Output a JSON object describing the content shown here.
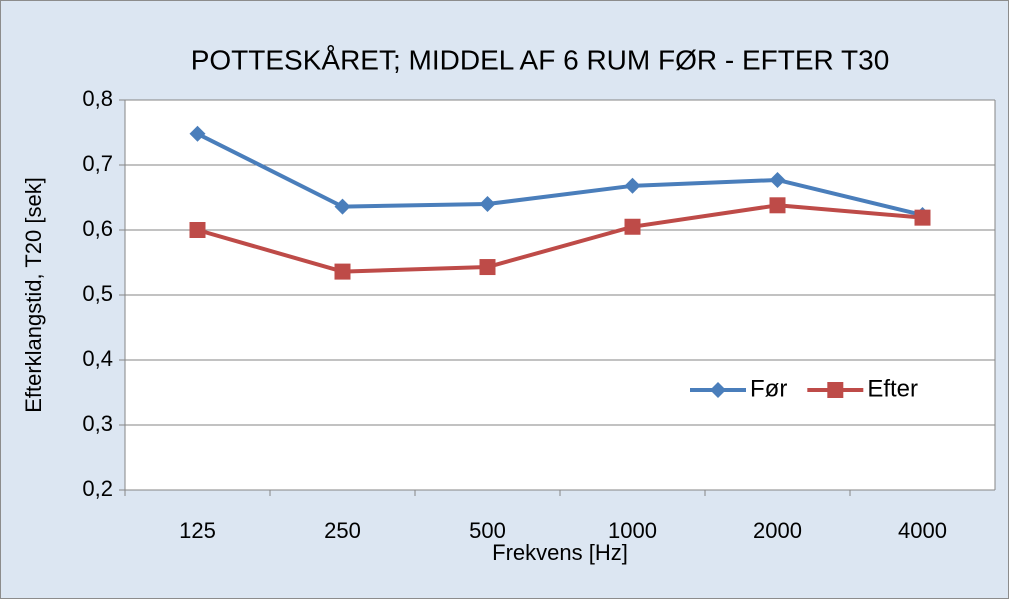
{
  "chart_data": {
    "type": "line",
    "title": "POTTESKÅRET; MIDDEL AF 6 RUM FØR - EFTER   T30",
    "x_label": "Frekvens [Hz]",
    "y_label": "Efterklangstid, T20 [sek]",
    "categories": [
      "125",
      "250",
      "500",
      "1000",
      "2000",
      "4000"
    ],
    "series": [
      {
        "name": "Før",
        "color": "#4a7ebb",
        "marker": "diamond",
        "values": [
          0.748,
          0.636,
          0.64,
          0.668,
          0.677,
          0.623
        ]
      },
      {
        "name": "Efter",
        "color": "#be4b48",
        "marker": "square",
        "values": [
          0.6,
          0.536,
          0.543,
          0.605,
          0.638,
          0.619
        ]
      }
    ],
    "ylim": [
      0.2,
      0.8
    ],
    "yticks": [
      {
        "value": 0.2,
        "label": "0,2"
      },
      {
        "value": 0.3,
        "label": "0,3"
      },
      {
        "value": 0.4,
        "label": "0,4"
      },
      {
        "value": 0.5,
        "label": "0,5"
      },
      {
        "value": 0.6,
        "label": "0,6"
      },
      {
        "value": 0.7,
        "label": "0,7"
      },
      {
        "value": 0.8,
        "label": "0,8"
      }
    ],
    "grid": true,
    "legend": "right"
  }
}
